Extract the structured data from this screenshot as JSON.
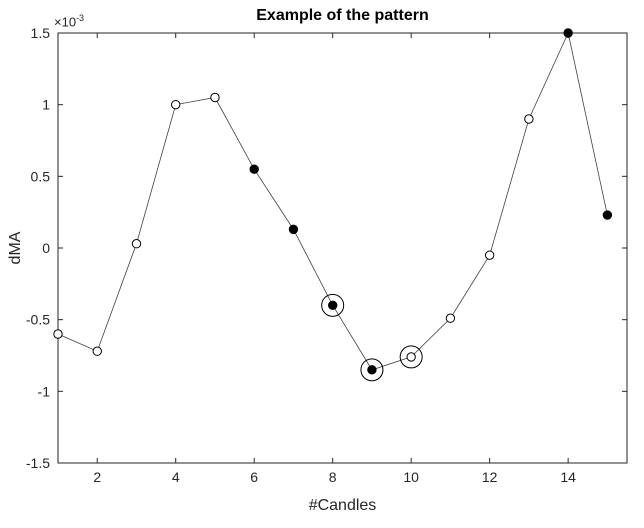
{
  "chart_data": {
    "type": "line",
    "title": "Example of the pattern",
    "xlabel": "#Candles",
    "ylabel": "dMA",
    "y_multiplier": {
      "base": "×10",
      "exp": "-3"
    },
    "xlim": [
      1,
      15.5
    ],
    "ylim_times_1e3": [
      -1.5,
      1.5
    ],
    "xticks": [
      2,
      4,
      6,
      8,
      10,
      12,
      14
    ],
    "xtick_labels": [
      "2",
      "4",
      "6",
      "8",
      "10",
      "12",
      "14"
    ],
    "yticks_times_1e3": [
      -1.5,
      -1,
      -0.5,
      0,
      0.5,
      1,
      1.5
    ],
    "ytick_labels": [
      "-1.5",
      "-1",
      "-0.5",
      "0",
      "0.5",
      "1",
      "1.5"
    ],
    "grid": false,
    "legend": "none",
    "points": [
      {
        "x": 1,
        "y_times_1e3": -0.6,
        "marker": "open",
        "ring": false
      },
      {
        "x": 2,
        "y_times_1e3": -0.72,
        "marker": "open",
        "ring": false
      },
      {
        "x": 3,
        "y_times_1e3": 0.03,
        "marker": "open",
        "ring": false
      },
      {
        "x": 4,
        "y_times_1e3": 1.0,
        "marker": "open",
        "ring": false
      },
      {
        "x": 5,
        "y_times_1e3": 1.05,
        "marker": "open",
        "ring": false
      },
      {
        "x": 6,
        "y_times_1e3": 0.55,
        "marker": "filled",
        "ring": false
      },
      {
        "x": 7,
        "y_times_1e3": 0.13,
        "marker": "filled",
        "ring": false
      },
      {
        "x": 8,
        "y_times_1e3": -0.4,
        "marker": "filled",
        "ring": true
      },
      {
        "x": 9,
        "y_times_1e3": -0.85,
        "marker": "filled",
        "ring": true
      },
      {
        "x": 10,
        "y_times_1e3": -0.76,
        "marker": "open",
        "ring": true
      },
      {
        "x": 11,
        "y_times_1e3": -0.49,
        "marker": "open",
        "ring": false
      },
      {
        "x": 12,
        "y_times_1e3": -0.05,
        "marker": "open",
        "ring": false
      },
      {
        "x": 13,
        "y_times_1e3": 0.9,
        "marker": "open",
        "ring": false
      },
      {
        "x": 14,
        "y_times_1e3": 1.5,
        "marker": "filled",
        "ring": false
      },
      {
        "x": 15,
        "y_times_1e3": 0.23,
        "marker": "filled",
        "ring": false
      }
    ],
    "colors": {
      "line": "#404040",
      "marker": "#000000",
      "marker_open_fill": "#ffffff",
      "axis": "#262626",
      "background": "#ffffff"
    }
  }
}
